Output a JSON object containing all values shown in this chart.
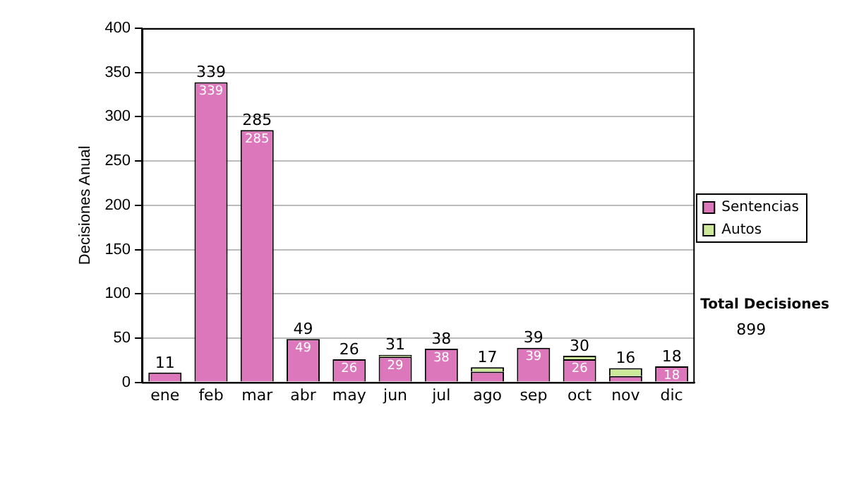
{
  "chart_data": {
    "type": "bar",
    "stacked": true,
    "ylabel": "Decisiones Anual",
    "categories": [
      "ene",
      "feb",
      "mar",
      "abr",
      "may",
      "jun",
      "jul",
      "ago",
      "sep",
      "oct",
      "nov",
      "dic"
    ],
    "series": [
      {
        "name": "Sentencias",
        "color": "#dd77bb",
        "values": [
          11,
          339,
          285,
          49,
          26,
          29,
          38,
          12,
          39,
          26,
          7,
          18
        ],
        "value_labels": [
          null,
          "339",
          "285",
          "49",
          "26",
          "29",
          "38",
          null,
          "39",
          "26",
          null,
          "18"
        ]
      },
      {
        "name": "Autos",
        "color": "#cce899",
        "values": [
          0,
          0,
          0,
          0,
          0,
          2,
          0,
          5,
          0,
          4,
          9,
          0
        ]
      }
    ],
    "totals": [
      "11",
      "339",
      "285",
      "49",
      "26",
      "31",
      "38",
      "17",
      "39",
      "30",
      "16",
      "18"
    ],
    "ylim": [
      0,
      400
    ],
    "yticks": [
      0,
      50,
      100,
      150,
      200,
      250,
      300,
      350,
      400
    ],
    "grid": "y",
    "legend": "right",
    "annotations": [
      "Total Decisiones",
      "899"
    ]
  }
}
